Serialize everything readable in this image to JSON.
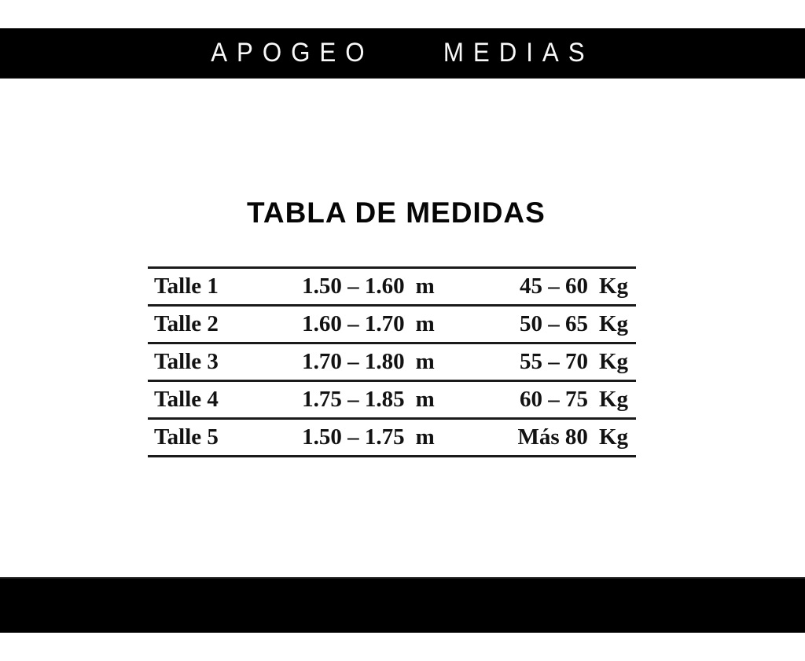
{
  "header": {
    "brand_words": [
      "APOGEO",
      "MEDIAS"
    ]
  },
  "title": "TABLA DE MEDIDAS",
  "size_table": {
    "rows": [
      {
        "size": "Talle 1",
        "height_range": "1.50 – 1.60",
        "height_unit": "m",
        "weight_range": "45 – 60",
        "weight_unit": "Kg"
      },
      {
        "size": "Talle 2",
        "height_range": "1.60 – 1.70",
        "height_unit": "m",
        "weight_range": "50 – 65",
        "weight_unit": "Kg"
      },
      {
        "size": "Talle 3",
        "height_range": "1.70 – 1.80",
        "height_unit": "m",
        "weight_range": "55 – 70",
        "weight_unit": "Kg"
      },
      {
        "size": "Talle 4",
        "height_range": "1.75 – 1.85",
        "height_unit": "m",
        "weight_range": "60 – 75",
        "weight_unit": "Kg"
      },
      {
        "size": "Talle 5",
        "height_range": "1.50 – 1.75",
        "height_unit": "m",
        "weight_range": "Más 80",
        "weight_unit": "Kg"
      }
    ]
  },
  "colors": {
    "bar_background": "#000000",
    "bar_text": "#f8f8f8",
    "table_line": "#1a1a1a",
    "body_text": "#121212",
    "page_background": "#ffffff"
  }
}
